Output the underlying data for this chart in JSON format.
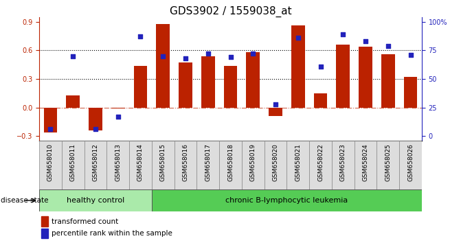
{
  "title": "GDS3902 / 1559038_at",
  "samples": [
    "GSM658010",
    "GSM658011",
    "GSM658012",
    "GSM658013",
    "GSM658014",
    "GSM658015",
    "GSM658016",
    "GSM658017",
    "GSM658018",
    "GSM658019",
    "GSM658020",
    "GSM658021",
    "GSM658022",
    "GSM658023",
    "GSM658024",
    "GSM658025",
    "GSM658026"
  ],
  "bar_values": [
    -0.26,
    0.13,
    -0.24,
    -0.01,
    0.44,
    0.88,
    0.47,
    0.54,
    0.44,
    0.58,
    -0.09,
    0.86,
    0.15,
    0.66,
    0.64,
    0.56,
    0.32
  ],
  "percentile_values": [
    6,
    70,
    6,
    17,
    87,
    70,
    68,
    72,
    69,
    72,
    28,
    86,
    61,
    89,
    83,
    79,
    71
  ],
  "bar_color": "#BB2200",
  "dot_color": "#2222BB",
  "left_ylim": [
    -0.35,
    0.95
  ],
  "left_yticks": [
    -0.3,
    0.0,
    0.3,
    0.6,
    0.9
  ],
  "right_yticks": [
    0,
    25,
    50,
    75,
    100
  ],
  "right_ytick_labels": [
    "0",
    "25",
    "50",
    "75",
    "100%"
  ],
  "grid_lines": [
    0.3,
    0.6
  ],
  "healthy_control_count": 5,
  "group_label_healthy": "healthy control",
  "group_label_disease": "chronic B-lymphocytic leukemia",
  "disease_state_label": "disease state",
  "legend_bar_label": "transformed count",
  "legend_dot_label": "percentile rank within the sample",
  "bg_color_healthy": "#AAEAAA",
  "bg_color_disease": "#55CC55",
  "bg_color_labels": "#DDDDDD",
  "title_fontsize": 11,
  "tick_fontsize": 7,
  "label_fontsize": 6.5,
  "group_fontsize": 8
}
